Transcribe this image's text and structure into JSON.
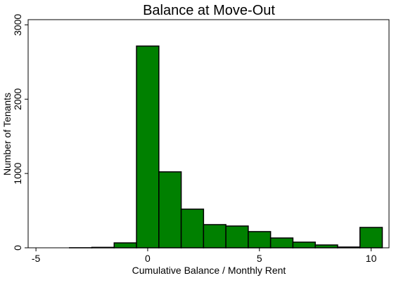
{
  "chart_data": {
    "type": "histogram",
    "title": "Balance at Move-Out",
    "x_label": "Cumulative Balance / Monthly Rent",
    "y_label": "Number of Tenants",
    "bins": [
      -5.5,
      -4.5,
      -3.5,
      -2.5,
      -1.5,
      -0.5,
      0.5,
      1.5,
      2.5,
      3.5,
      4.5,
      5.5,
      6.5,
      7.5,
      8.5,
      9.5,
      10.5
    ],
    "counts": [
      0,
      0,
      1,
      6,
      66,
      2715,
      1022,
      520,
      312,
      293,
      218,
      132,
      76,
      38,
      10,
      274
    ],
    "color": "#008000",
    "xlim": [
      -5.35,
      10.8
    ],
    "xticks": [
      -5,
      0,
      5,
      10
    ],
    "ylim": [
      0,
      3070
    ],
    "yticks": [
      0,
      1000,
      2000,
      3000
    ]
  }
}
